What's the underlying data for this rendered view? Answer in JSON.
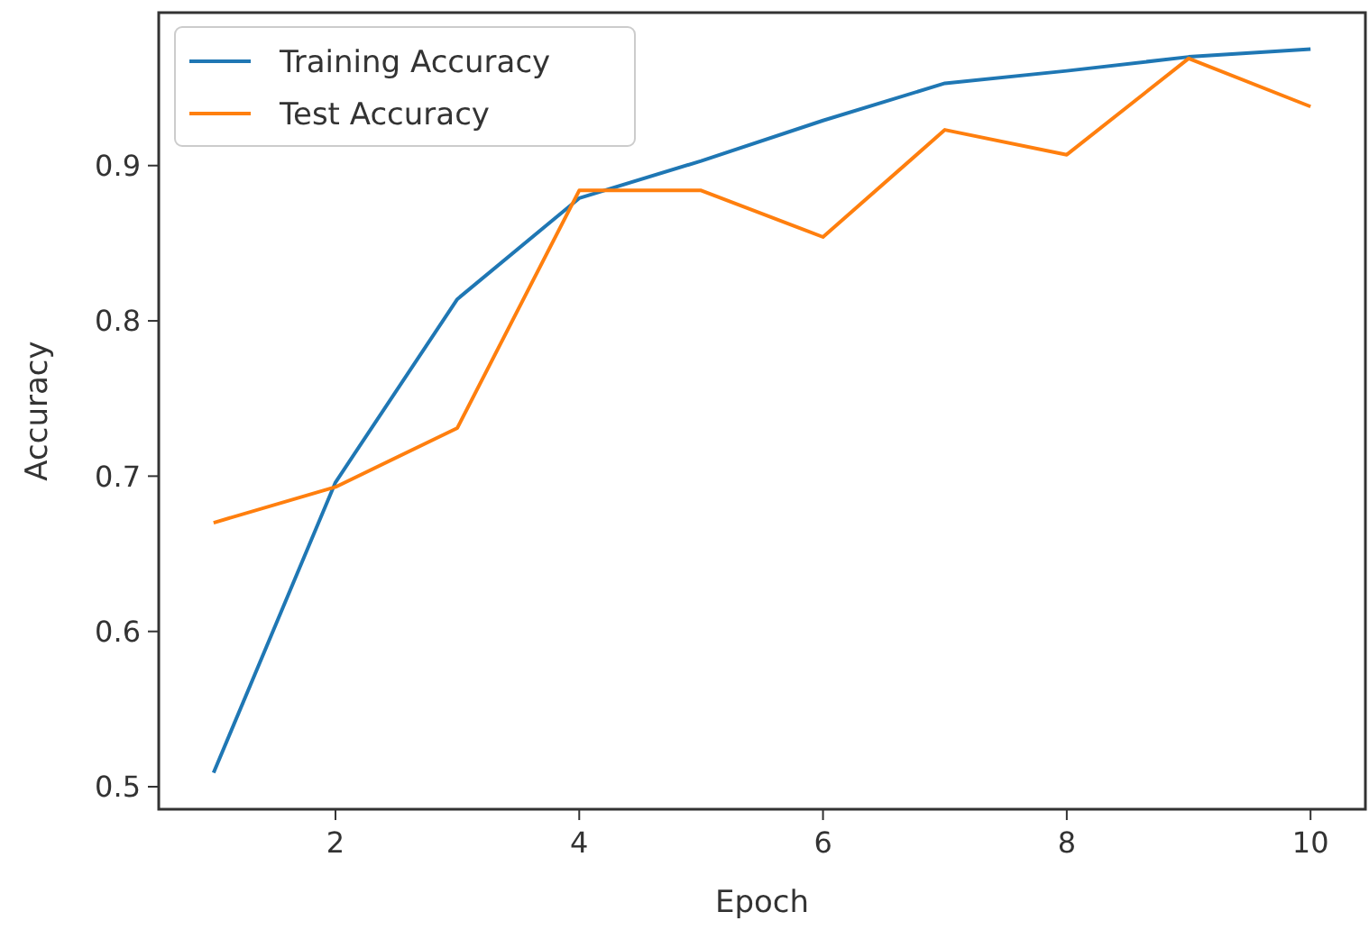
{
  "chart_data": {
    "type": "line",
    "xlabel": "Epoch",
    "ylabel": "Accuracy",
    "x": [
      1,
      2,
      3,
      4,
      5,
      6,
      7,
      8,
      9,
      10
    ],
    "series": [
      {
        "name": "Training Accuracy",
        "color": "#1f77b4",
        "values": [
          0.509,
          0.696,
          0.814,
          0.879,
          0.903,
          0.929,
          0.953,
          0.961,
          0.97,
          0.975
        ]
      },
      {
        "name": "Test Accuracy",
        "color": "#ff7f0e",
        "values": [
          0.67,
          0.693,
          0.731,
          0.884,
          0.884,
          0.854,
          0.923,
          0.907,
          0.969,
          0.938
        ]
      }
    ],
    "xlim": [
      0.55,
      10.45
    ],
    "ylim": [
      0.4855,
      0.9985
    ],
    "xticks": [
      2,
      4,
      6,
      8,
      10
    ],
    "yticks": [
      0.5,
      0.6,
      0.7,
      0.8,
      0.9
    ],
    "legend": "top left",
    "grid": false,
    "marker": "none",
    "line_style": "solid"
  }
}
